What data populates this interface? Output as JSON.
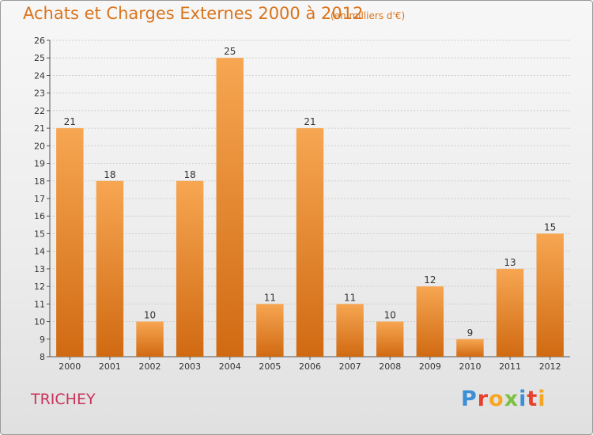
{
  "title": "Achats et Charges Externes 2000 à 2012",
  "subtitle": "(en milliers d'€)",
  "town": "TRICHEY",
  "logo": {
    "letters": [
      "P",
      "r",
      "o",
      "x",
      "i",
      "t",
      "i"
    ],
    "colors": [
      "#3a8fd6",
      "#e5412e",
      "#f5a623",
      "#7cc242",
      "#3a8fd6",
      "#e5412e",
      "#f5a623"
    ]
  },
  "colors": {
    "bar_top": "#f7a652",
    "bar_bottom": "#d06a12",
    "title": "#d9741c",
    "town": "#c8325c",
    "grid": "#cfcfcf"
  },
  "chart_data": {
    "type": "bar",
    "title": "Achats et Charges Externes 2000 à 2012",
    "subtitle": "(en milliers d'€)",
    "categories": [
      "2000",
      "2001",
      "2002",
      "2003",
      "2004",
      "2005",
      "2006",
      "2007",
      "2008",
      "2009",
      "2010",
      "2011",
      "2012"
    ],
    "values": [
      21,
      18,
      10,
      18,
      25,
      11,
      21,
      11,
      10,
      12,
      9,
      13,
      15
    ],
    "ylim": [
      8,
      26
    ],
    "yticks": [
      8,
      9,
      10,
      11,
      12,
      13,
      14,
      15,
      16,
      17,
      18,
      19,
      20,
      21,
      22,
      23,
      24,
      25,
      26
    ],
    "grid": true,
    "legend": "none"
  }
}
